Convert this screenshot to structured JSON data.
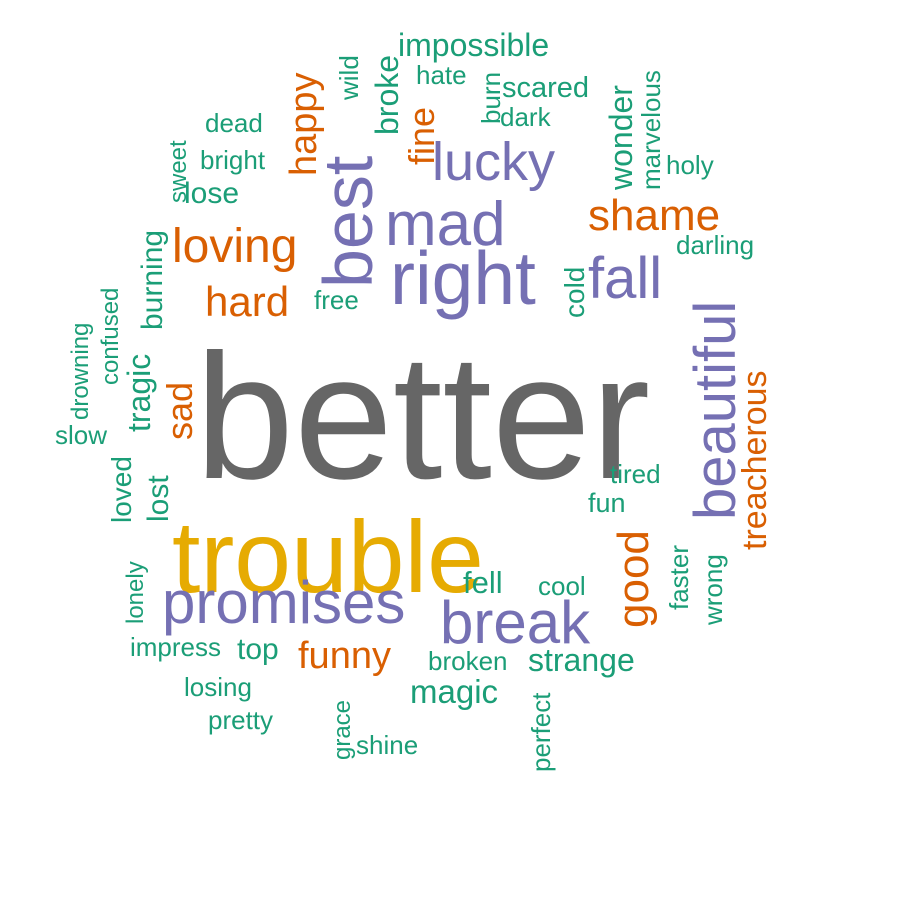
{
  "chart_data": {
    "type": "wordcloud",
    "palette": {
      "top": "#666666",
      "second": "#E6AB02",
      "purple": "#7570B3",
      "orange": "#D95F02",
      "green": "#1B9E77"
    },
    "words": [
      {
        "text": "better",
        "color": "#666666",
        "rotated": false
      },
      {
        "text": "trouble",
        "color": "#E6AB02",
        "rotated": false
      },
      {
        "text": "right",
        "color": "#7570B3",
        "rotated": false
      },
      {
        "text": "best",
        "color": "#7570B3",
        "rotated": true
      },
      {
        "text": "promises",
        "color": "#7570B3",
        "rotated": false
      },
      {
        "text": "break",
        "color": "#7570B3",
        "rotated": false
      },
      {
        "text": "beautiful",
        "color": "#7570B3",
        "rotated": true
      },
      {
        "text": "mad",
        "color": "#7570B3",
        "rotated": false
      },
      {
        "text": "fall",
        "color": "#7570B3",
        "rotated": false
      },
      {
        "text": "lucky",
        "color": "#7570B3",
        "rotated": false
      },
      {
        "text": "loving",
        "color": "#D95F02",
        "rotated": false
      },
      {
        "text": "good",
        "color": "#D95F02",
        "rotated": true
      },
      {
        "text": "shame",
        "color": "#D95F02",
        "rotated": false
      },
      {
        "text": "hard",
        "color": "#D95F02",
        "rotated": false
      },
      {
        "text": "treacherous",
        "color": "#D95F02",
        "rotated": true
      },
      {
        "text": "happy",
        "color": "#D95F02",
        "rotated": true
      },
      {
        "text": "funny",
        "color": "#D95F02",
        "rotated": false
      },
      {
        "text": "sad",
        "color": "#D95F02",
        "rotated": true
      },
      {
        "text": "fine",
        "color": "#D95F02",
        "rotated": true
      },
      {
        "text": "magic",
        "color": "#1B9E77",
        "rotated": false
      },
      {
        "text": "strange",
        "color": "#1B9E77",
        "rotated": false
      },
      {
        "text": "impossible",
        "color": "#1B9E77",
        "rotated": false
      },
      {
        "text": "wonder",
        "color": "#1B9E77",
        "rotated": true
      },
      {
        "text": "broke",
        "color": "#1B9E77",
        "rotated": true
      },
      {
        "text": "tragic",
        "color": "#1B9E77",
        "rotated": true
      },
      {
        "text": "lost",
        "color": "#1B9E77",
        "rotated": true
      },
      {
        "text": "fell",
        "color": "#1B9E77",
        "rotated": false
      },
      {
        "text": "burning",
        "color": "#1B9E77",
        "rotated": true
      },
      {
        "text": "scared",
        "color": "#1B9E77",
        "rotated": false
      },
      {
        "text": "top",
        "color": "#1B9E77",
        "rotated": false
      },
      {
        "text": "lose",
        "color": "#1B9E77",
        "rotated": false
      },
      {
        "text": "loved",
        "color": "#1B9E77",
        "rotated": true
      },
      {
        "text": "cold",
        "color": "#1B9E77",
        "rotated": true
      },
      {
        "text": "marvelous",
        "color": "#1B9E77",
        "rotated": true
      },
      {
        "text": "faster",
        "color": "#1B9E77",
        "rotated": true
      },
      {
        "text": "impress",
        "color": "#1B9E77",
        "rotated": false
      },
      {
        "text": "broken",
        "color": "#1B9E77",
        "rotated": false
      },
      {
        "text": "free",
        "color": "#1B9E77",
        "rotated": false
      },
      {
        "text": "fun",
        "color": "#1B9E77",
        "rotated": false
      },
      {
        "text": "tired",
        "color": "#1B9E77",
        "rotated": false
      },
      {
        "text": "darling",
        "color": "#1B9E77",
        "rotated": false
      },
      {
        "text": "dark",
        "color": "#1B9E77",
        "rotated": false
      },
      {
        "text": "cool",
        "color": "#1B9E77",
        "rotated": false
      },
      {
        "text": "wrong",
        "color": "#1B9E77",
        "rotated": true
      },
      {
        "text": "perfect",
        "color": "#1B9E77",
        "rotated": true
      },
      {
        "text": "holy",
        "color": "#1B9E77",
        "rotated": false
      },
      {
        "text": "bright",
        "color": "#1B9E77",
        "rotated": false
      },
      {
        "text": "dead",
        "color": "#1B9E77",
        "rotated": false
      },
      {
        "text": "hate",
        "color": "#1B9E77",
        "rotated": false
      },
      {
        "text": "burn",
        "color": "#1B9E77",
        "rotated": true
      },
      {
        "text": "wild",
        "color": "#1B9E77",
        "rotated": true
      },
      {
        "text": "sweet",
        "color": "#1B9E77",
        "rotated": true
      },
      {
        "text": "slow",
        "color": "#1B9E77",
        "rotated": false
      },
      {
        "text": "confused",
        "color": "#1B9E77",
        "rotated": true
      },
      {
        "text": "drowning",
        "color": "#1B9E77",
        "rotated": true
      },
      {
        "text": "lonely",
        "color": "#1B9E77",
        "rotated": true
      },
      {
        "text": "losing",
        "color": "#1B9E77",
        "rotated": false
      },
      {
        "text": "pretty",
        "color": "#1B9E77",
        "rotated": false
      },
      {
        "text": "grace",
        "color": "#1B9E77",
        "rotated": true
      },
      {
        "text": "shine",
        "color": "#1B9E77",
        "rotated": false
      }
    ]
  }
}
